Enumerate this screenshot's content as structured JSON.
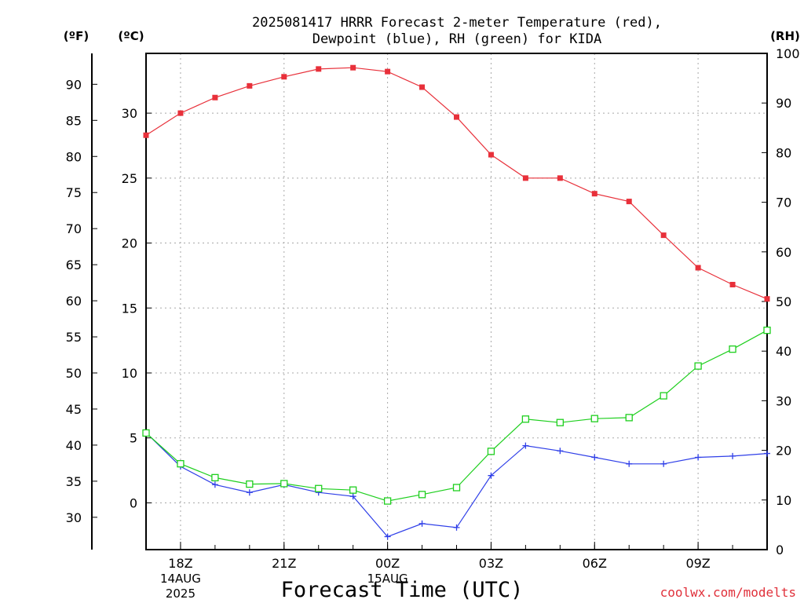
{
  "title_line1": "2025081417 HRRR Forecast 2-meter Temperature (red),",
  "title_line2": "Dewpoint (blue), RH (green) for KIDA",
  "unit_f": "(ºF)",
  "unit_c": "(ºC)",
  "unit_rh": "(RH)",
  "xlabel": "Forecast Time (UTC)",
  "credit": "coolwx.com/modelts",
  "chart_data": {
    "type": "line",
    "title": "2025081417 HRRR Forecast 2-meter Temperature (red), Dewpoint (blue), RH (green) for KIDA",
    "xlabel": "Forecast Time (UTC)",
    "x": [
      "17Z",
      "18Z",
      "19Z",
      "20Z",
      "21Z",
      "22Z",
      "23Z",
      "00Z",
      "01Z",
      "02Z",
      "03Z",
      "04Z",
      "05Z",
      "06Z",
      "07Z",
      "08Z",
      "09Z",
      "10Z",
      "11Z"
    ],
    "x_ticks": [
      {
        "index": 1,
        "label": "18Z",
        "date": "14AUG",
        "year": "2025"
      },
      {
        "index": 4,
        "label": "21Z"
      },
      {
        "index": 7,
        "label": "00Z",
        "date": "15AUG"
      },
      {
        "index": 10,
        "label": "03Z"
      },
      {
        "index": 13,
        "label": "06Z"
      },
      {
        "index": 16,
        "label": "09Z"
      }
    ],
    "y_celsius": {
      "lim": [
        -3.6,
        34.6
      ],
      "ticks": [
        0,
        5,
        10,
        15,
        20,
        25,
        30
      ]
    },
    "y_fahrenheit": {
      "ticks": [
        30,
        35,
        40,
        45,
        50,
        55,
        60,
        65,
        70,
        75,
        80,
        85,
        90
      ]
    },
    "y_rh": {
      "lim": [
        0,
        100
      ],
      "ticks": [
        0,
        10,
        20,
        30,
        40,
        50,
        60,
        70,
        80,
        90,
        100
      ]
    },
    "grid": true,
    "series": [
      {
        "name": "Temperature",
        "axis": "celsius",
        "color": "#e8303a",
        "marker": "filled-square",
        "values": [
          28.3,
          30.0,
          31.2,
          32.1,
          32.8,
          33.4,
          33.5,
          33.2,
          32.0,
          29.7,
          26.8,
          25.0,
          25.0,
          23.8,
          23.2,
          20.6,
          18.1,
          16.8,
          15.7
        ]
      },
      {
        "name": "Dewpoint",
        "axis": "celsius",
        "color": "#2f3fe8",
        "marker": "plus",
        "values": [
          5.4,
          2.8,
          1.4,
          0.8,
          1.4,
          0.8,
          0.5,
          -2.6,
          -1.6,
          -1.9,
          2.1,
          4.4,
          4.0,
          3.5,
          3.0,
          3.0,
          3.5,
          3.6,
          3.8
        ]
      },
      {
        "name": "RH",
        "axis": "rh",
        "color": "#1ecf1e",
        "marker": "open-square",
        "values": [
          23.5,
          17.3,
          14.5,
          13.2,
          13.3,
          12.3,
          12.0,
          9.8,
          11.1,
          12.5,
          19.8,
          26.3,
          25.6,
          26.4,
          26.6,
          31.0,
          37.0,
          40.4,
          44.2
        ]
      }
    ]
  }
}
